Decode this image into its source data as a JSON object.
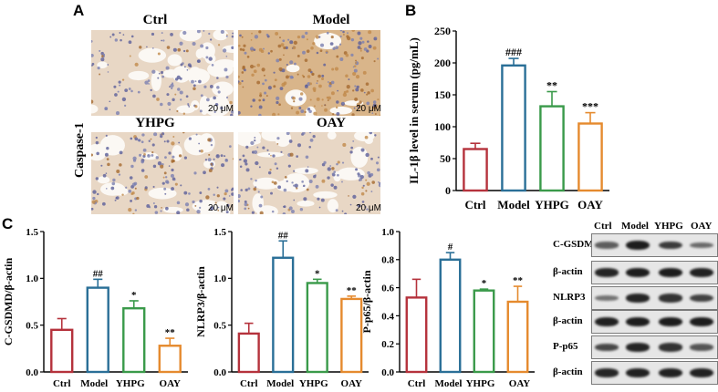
{
  "panels": {
    "A": "A",
    "B": "B",
    "C": "C"
  },
  "ihc": {
    "stain_label": "Caspase-1",
    "groups": [
      "Ctrl",
      "Model",
      "YHPG",
      "OAY"
    ],
    "scale_bar": "20 μM"
  },
  "chart_data": [
    {
      "type": "bar",
      "panel": "B",
      "categories": [
        "Ctrl",
        "Model",
        "YHPG",
        "OAY"
      ],
      "values": [
        65,
        196,
        132,
        105
      ],
      "errors": [
        9,
        11,
        23,
        17
      ],
      "significance": [
        "",
        "###",
        "**",
        "***"
      ],
      "ylabel": "IL-1β level in serum (pg/mL)",
      "ylim": [
        0,
        250
      ],
      "yticks": [
        "0",
        "50",
        "100",
        "150",
        "200",
        "250"
      ],
      "tick_values": [
        0,
        50,
        100,
        150,
        200,
        250
      ]
    },
    {
      "type": "bar",
      "panel": "C",
      "categories": [
        "Ctrl",
        "Model",
        "YHPG",
        "OAY"
      ],
      "values": [
        0.45,
        0.9,
        0.68,
        0.28
      ],
      "errors": [
        0.12,
        0.09,
        0.08,
        0.08
      ],
      "significance": [
        "",
        "##",
        "*",
        "**"
      ],
      "ylabel": "C-GSDMD/β-actin",
      "ylim": [
        0,
        1.5
      ],
      "yticks": [
        "0.0",
        "0.5",
        "1.0",
        "1.5"
      ],
      "tick_values": [
        0,
        0.5,
        1.0,
        1.5
      ]
    },
    {
      "type": "bar",
      "panel": "C",
      "categories": [
        "Ctrl",
        "Model",
        "YHPG",
        "OAY"
      ],
      "values": [
        0.41,
        1.22,
        0.95,
        0.78
      ],
      "errors": [
        0.11,
        0.18,
        0.04,
        0.03
      ],
      "significance": [
        "",
        "##",
        "*",
        "**"
      ],
      "ylabel": "NLRP3/β-actin",
      "ylim": [
        0,
        1.5
      ],
      "yticks": [
        "0.0",
        "0.5",
        "1.0",
        "1.5"
      ],
      "tick_values": [
        0,
        0.5,
        1.0,
        1.5
      ]
    },
    {
      "type": "bar",
      "panel": "C",
      "categories": [
        "Ctrl",
        "Model",
        "YHPG",
        "OAY"
      ],
      "values": [
        0.53,
        0.8,
        0.58,
        0.5
      ],
      "errors": [
        0.13,
        0.05,
        0.01,
        0.11
      ],
      "significance": [
        "",
        "#",
        "*",
        "**"
      ],
      "ylabel": "P-p65/β-actin",
      "ylim": [
        0,
        1.0
      ],
      "yticks": [
        "0.0",
        "0.2",
        "0.4",
        "0.6",
        "0.8",
        "1.0"
      ],
      "tick_values": [
        0,
        0.2,
        0.4,
        0.6,
        0.8,
        1.0
      ]
    }
  ],
  "bar_colors": [
    "#b5323c",
    "#2a6f97",
    "#3a9a4a",
    "#e58a2e"
  ],
  "western_blot": {
    "columns": [
      "Ctrl",
      "Model",
      "YHPG",
      "OAY"
    ],
    "rows": [
      {
        "label": "C-GSDMD",
        "intensity": [
          0.45,
          0.9,
          0.7,
          0.35
        ]
      },
      {
        "label": "β-actin",
        "intensity": [
          0.85,
          0.9,
          0.9,
          0.88
        ]
      },
      {
        "label": "NLRP3",
        "intensity": [
          0.3,
          0.85,
          0.75,
          0.65
        ]
      },
      {
        "label": "β-actin",
        "intensity": [
          0.88,
          0.9,
          0.9,
          0.9
        ]
      },
      {
        "label": "P-p65",
        "intensity": [
          0.6,
          0.85,
          0.75,
          0.5
        ]
      },
      {
        "label": "β-actin",
        "intensity": [
          0.85,
          0.88,
          0.88,
          0.88
        ]
      }
    ]
  }
}
